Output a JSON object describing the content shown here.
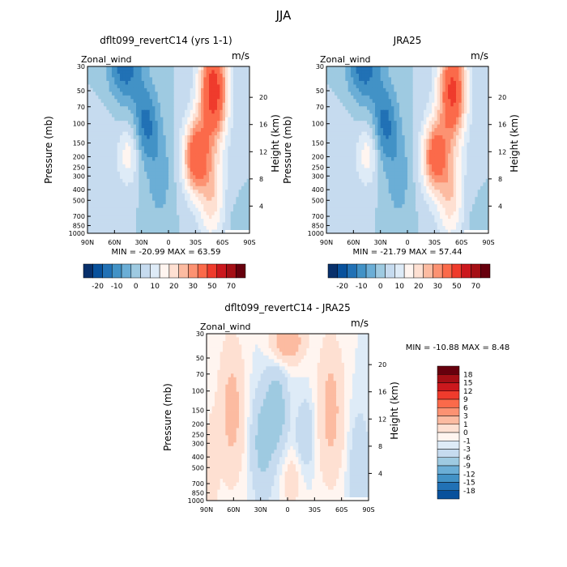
{
  "season_title": "JJA",
  "pressure_ticks": [
    "30",
    "50",
    "70",
    "100",
    "150",
    "200",
    "250",
    "300",
    "400",
    "500",
    "700",
    "850",
    "1000"
  ],
  "height_ticks": [
    "20",
    "16",
    "12",
    "8",
    "4"
  ],
  "lat_ticks": [
    "90N",
    "60N",
    "30N",
    "0",
    "30S",
    "60S",
    "90S"
  ],
  "chart_data": [
    {
      "type": "heatmap",
      "title": "dflt099_revertC14 (yrs 1-1)",
      "variable": "Zonal_wind",
      "units": "m/s",
      "xlabel": "",
      "ylabel": "Pressure (mb)",
      "ylabel_right": "Height (km)",
      "x_range": [
        "90N",
        "90S"
      ],
      "y_range_mb": [
        1000,
        30
      ],
      "min_label": "MIN = -20.99",
      "max_label": "MAX =  63.59",
      "min": -20.99,
      "max": 63.59,
      "colorbar_levels": [
        "-20",
        "-10",
        "0",
        "10",
        "20",
        "30",
        "50",
        "70"
      ],
      "features": [
        {
          "lat": 45,
          "p": 30,
          "value": -18
        },
        {
          "lat": 25,
          "p": 100,
          "value": -18
        },
        {
          "lat": 45,
          "p": 190,
          "value": 12
        },
        {
          "lat": -30,
          "p": 190,
          "value": 40
        },
        {
          "lat": -50,
          "p": 50,
          "value": 60
        },
        {
          "lat": -50,
          "p": 400,
          "value": 18
        }
      ]
    },
    {
      "type": "heatmap",
      "title": "JRA25",
      "variable": "Zonal_wind",
      "units": "m/s",
      "xlabel": "",
      "ylabel": "Pressure (mb)",
      "ylabel_right": "Height (km)",
      "x_range": [
        "90N",
        "90S"
      ],
      "y_range_mb": [
        1000,
        30
      ],
      "min_label": "MIN = -21.79",
      "max_label": "MAX =  57.44",
      "min": -21.79,
      "max": 57.44,
      "colorbar_levels": [
        "-20",
        "-10",
        "0",
        "10",
        "20",
        "30",
        "50",
        "70"
      ],
      "features": [
        {
          "lat": 50,
          "p": 30,
          "value": -18
        },
        {
          "lat": 25,
          "p": 100,
          "value": -15
        },
        {
          "lat": 45,
          "p": 190,
          "value": 12
        },
        {
          "lat": -30,
          "p": 190,
          "value": 40
        },
        {
          "lat": -55,
          "p": 50,
          "value": 55
        },
        {
          "lat": -50,
          "p": 400,
          "value": 18
        }
      ]
    },
    {
      "type": "heatmap",
      "title": "dflt099_revertC14 - JRA25",
      "variable": "Zonal_wind",
      "units": "m/s",
      "xlabel": "",
      "ylabel": "Pressure (mb)",
      "ylabel_right": "Height (km)",
      "x_range": [
        "90N",
        "90S"
      ],
      "y_range_mb": [
        1000,
        30
      ],
      "min_label": "MIN = -10.88",
      "max_label": "MAX =   8.48",
      "min": -10.88,
      "max": 8.48,
      "colorbar_levels": [
        "18",
        "15",
        "12",
        "9",
        "6",
        "3",
        "1",
        "0",
        "-1",
        "-3",
        "-6",
        "-9",
        "-12",
        "-15",
        "-18"
      ],
      "features": [
        {
          "lat": 0,
          "p": 35,
          "value": 6
        },
        {
          "lat": 60,
          "p": 150,
          "value": 4
        },
        {
          "lat": -50,
          "p": 150,
          "value": 4
        },
        {
          "lat": 10,
          "p": 150,
          "value": -5
        },
        {
          "lat": 30,
          "p": 300,
          "value": -3
        },
        {
          "lat": -5,
          "p": 600,
          "value": 2
        }
      ]
    }
  ],
  "colors": {
    "diverging": [
      "#08306b",
      "#08519c",
      "#2171b5",
      "#4292c6",
      "#6baed6",
      "#9ecae1",
      "#c6dbef",
      "#deebf7",
      "#fff5f0",
      "#fee0d2",
      "#fcbba1",
      "#fc9272",
      "#fb6a4a",
      "#ef3b2c",
      "#cb181d",
      "#a50f15",
      "#67000d"
    ]
  }
}
